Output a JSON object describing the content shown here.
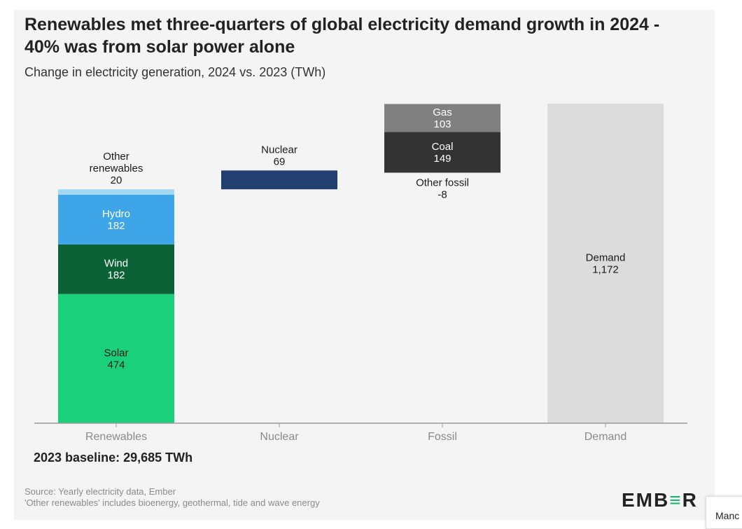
{
  "title": "Renewables met three-quarters of global electricity demand growth in 2024 - 40% was from solar power alone",
  "subtitle": "Change in electricity generation, 2024 vs. 2023 (TWh)",
  "baseline_note": "2023 baseline: 29,685 TWh",
  "source_lines": [
    "Source: Yearly electricity data, Ember",
    "'Other renewables' includes bioenergy, geothermal, tide and wave energy"
  ],
  "logo_text": {
    "pre": "EMB",
    "mark": "≡",
    "post": "R"
  },
  "side_tab_text": "Manc",
  "chart_data": {
    "type": "bar",
    "subtype": "waterfall",
    "categories": [
      "Renewables",
      "Nuclear",
      "Fossil",
      "Demand"
    ],
    "ylim": [
      0,
      1172
    ],
    "grid": false,
    "segments": [
      {
        "category": "Renewables",
        "name": "Solar",
        "value": 474,
        "value_label": "474",
        "color": "#1ad07a",
        "text_color": "#1a1a1a",
        "label_lines": [
          "Solar",
          "474"
        ],
        "label_position": "inside"
      },
      {
        "category": "Renewables",
        "name": "Wind",
        "value": 182,
        "value_label": "182",
        "color": "#0c6237",
        "text_color": "#ffffff",
        "label_lines": [
          "Wind",
          "182"
        ],
        "label_position": "inside"
      },
      {
        "category": "Renewables",
        "name": "Hydro",
        "value": 182,
        "value_label": "182",
        "color": "#3ea6e8",
        "text_color": "#ffffff",
        "label_lines": [
          "Hydro",
          "182"
        ],
        "label_position": "inside"
      },
      {
        "category": "Renewables",
        "name": "Other renewables",
        "value": 20,
        "value_label": "20",
        "color": "#a3d8f3",
        "text_color": "#1a1a1a",
        "label_lines": [
          "Other",
          "renewables",
          "20"
        ],
        "label_position": "above"
      },
      {
        "category": "Nuclear",
        "name": "Nuclear",
        "value": 69,
        "value_label": "69",
        "color": "#213f6f",
        "text_color": "#1a1a1a",
        "label_lines": [
          "Nuclear",
          "69"
        ],
        "label_position": "above"
      },
      {
        "category": "Fossil",
        "name": "Other fossil",
        "value": -8,
        "value_label": "-8",
        "color": "#8a8a8a",
        "text_color": "#1a1a1a",
        "label_lines": [
          "Other fossil",
          "-8"
        ],
        "label_position": "below"
      },
      {
        "category": "Fossil",
        "name": "Coal",
        "value": 149,
        "value_label": "149",
        "color": "#333333",
        "text_color": "#ffffff",
        "label_lines": [
          "Coal",
          "149"
        ],
        "label_position": "inside"
      },
      {
        "category": "Fossil",
        "name": "Gas",
        "value": 103,
        "value_label": "103",
        "color": "#808080",
        "text_color": "#ffffff",
        "label_lines": [
          "Gas",
          "103"
        ],
        "label_position": "inside"
      },
      {
        "category": "Demand",
        "name": "Demand",
        "value": 1172,
        "value_label": "1,172",
        "color": "#dcdcdc",
        "text_color": "#1a1a1a",
        "label_lines": [
          "Demand",
          "1,172"
        ],
        "label_position": "inside",
        "from_zero": true
      }
    ]
  }
}
